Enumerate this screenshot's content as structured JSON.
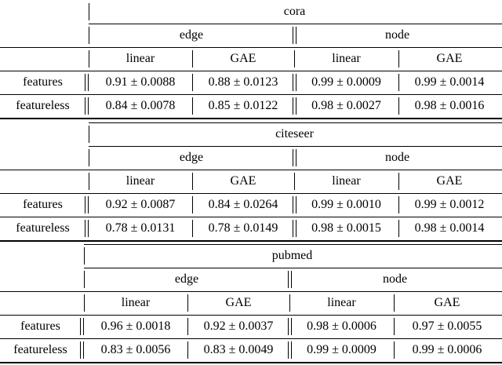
{
  "tables": [
    {
      "dataset": "cora",
      "groups": [
        "edge",
        "node"
      ],
      "methods": [
        "linear",
        "GAE",
        "linear",
        "GAE"
      ],
      "rows": [
        {
          "label": "features",
          "cells": [
            "0.91 ± 0.0088",
            "0.88 ± 0.0123",
            "0.99 ± 0.0009",
            "0.99 ± 0.0014"
          ]
        },
        {
          "label": "featureless",
          "cells": [
            "0.84 ± 0.0078",
            "0.85 ± 0.0122",
            "0.98 ± 0.0027",
            "0.98 ± 0.0016"
          ]
        }
      ]
    },
    {
      "dataset": "citeseer",
      "groups": [
        "edge",
        "node"
      ],
      "methods": [
        "linear",
        "GAE",
        "linear",
        "GAE"
      ],
      "rows": [
        {
          "label": "features",
          "cells": [
            "0.92 ± 0.0087",
            "0.84 ± 0.0264",
            "0.99 ± 0.0010",
            "0.99 ± 0.0012"
          ]
        },
        {
          "label": "featureless",
          "cells": [
            "0.78 ± 0.0131",
            "0.78 ± 0.0149",
            "0.98 ± 0.0015",
            "0.98 ± 0.0014"
          ]
        }
      ]
    },
    {
      "dataset": "pubmed",
      "groups": [
        "edge",
        "node"
      ],
      "methods": [
        "linear",
        "GAE",
        "linear",
        "GAE"
      ],
      "rows": [
        {
          "label": "features",
          "cells": [
            "0.96 ± 0.0018",
            "0.92 ± 0.0037",
            "0.98 ± 0.0006",
            "0.97 ± 0.0055"
          ]
        },
        {
          "label": "featureless",
          "cells": [
            "0.83 ± 0.0056",
            "0.83 ± 0.0049",
            "0.99 ± 0.0009",
            "0.99 ± 0.0006"
          ]
        }
      ]
    }
  ]
}
